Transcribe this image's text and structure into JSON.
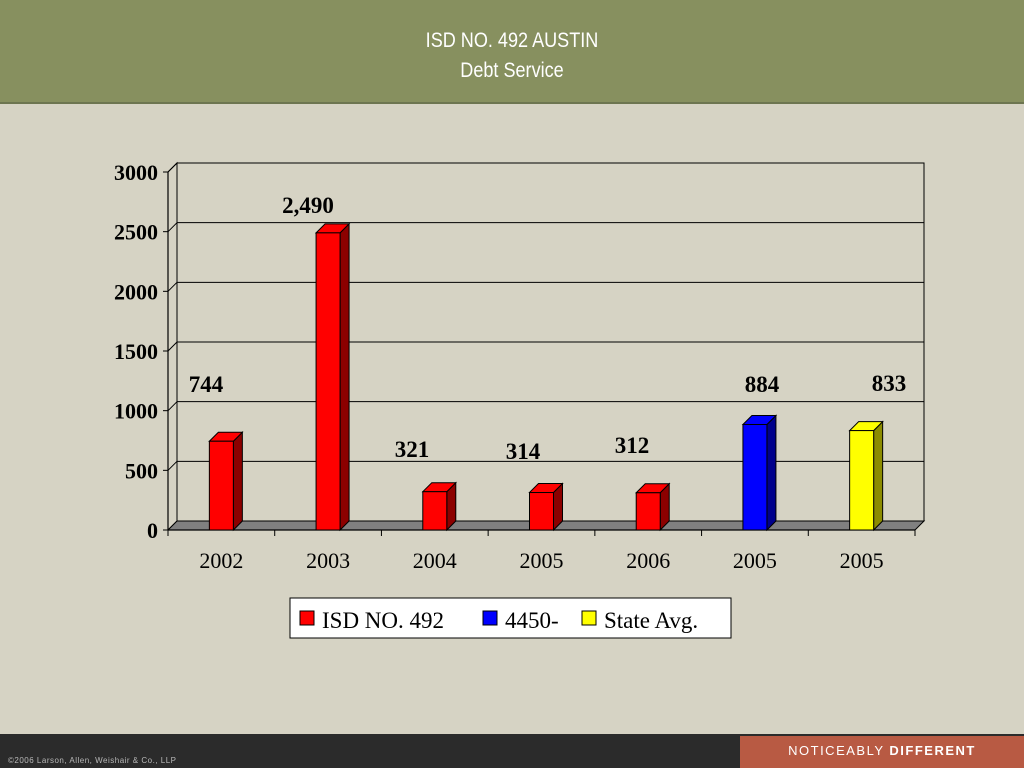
{
  "header": {
    "title": "ISD NO. 492 AUSTIN",
    "subtitle": "Debt Service"
  },
  "footer": {
    "copyright": "©2006 Larson, Allen, Weishair & Co., LLP",
    "tagline_light": "NOTICEABLY",
    "tagline_bold": "DIFFERENT"
  },
  "colors": {
    "header_bg": "#87905f",
    "page_bg": "#d6d3c4",
    "isd": "#ff0000",
    "district_4450": "#0000ff",
    "state_avg": "#ffff00",
    "tagline_bg": "#b85a43"
  },
  "chart_data": {
    "type": "bar",
    "title": "",
    "xlabel": "",
    "ylabel": "",
    "ylim": [
      0,
      3000
    ],
    "yticks": [
      "0",
      "500",
      "1000",
      "1500",
      "2000",
      "2500",
      "3000"
    ],
    "grid": true,
    "legend_position": "bottom",
    "categories": [
      "2002",
      "2003",
      "2004",
      "2005",
      "2006",
      "2005",
      "2005"
    ],
    "bars": [
      {
        "category": "2002",
        "series": "ISD NO. 492",
        "value": 744,
        "label": "744"
      },
      {
        "category": "2003",
        "series": "ISD NO. 492",
        "value": 2490,
        "label": "2,490"
      },
      {
        "category": "2004",
        "series": "ISD NO. 492",
        "value": 321,
        "label": "321"
      },
      {
        "category": "2005",
        "series": "ISD NO. 492",
        "value": 314,
        "label": "314"
      },
      {
        "category": "2006",
        "series": "ISD NO. 492",
        "value": 312,
        "label": "312"
      },
      {
        "category": "2005",
        "series": "4450-",
        "value": 884,
        "label": "884"
      },
      {
        "category": "2005",
        "series": "State Avg.",
        "value": 833,
        "label": "833"
      }
    ],
    "legend": [
      {
        "name": "ISD NO. 492",
        "color": "#ff0000"
      },
      {
        "name": "4450-",
        "color": "#0000ff"
      },
      {
        "name": "State Avg.",
        "color": "#ffff00"
      }
    ]
  }
}
